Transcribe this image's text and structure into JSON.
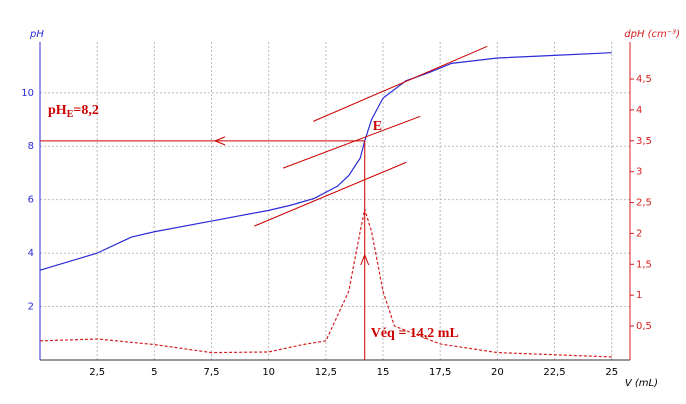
{
  "chart_data": {
    "type": "line",
    "y_label": "pH",
    "y2_label": "dpH  (cm⁻³)",
    "x_label": "V  (mL)",
    "xlim": [
      0,
      25.8
    ],
    "ylim": [
      0,
      11.9
    ],
    "y2lim": [
      -0.05,
      5.1
    ],
    "xticks": [
      {
        "value": 2.5,
        "label": "2,5"
      },
      5,
      {
        "value": 7.5,
        "label": "7,5"
      },
      10,
      {
        "value": 12.5,
        "label": "12,5"
      },
      15,
      {
        "value": 17.5,
        "label": "17,5"
      },
      20,
      {
        "value": 22.5,
        "label": "22,5"
      },
      25
    ],
    "yticks": [
      2,
      4,
      6,
      8,
      10
    ],
    "y2ticks": [
      {
        "value": 0.5,
        "label": "0,5"
      },
      1,
      {
        "value": 1.5,
        "label": "1,5"
      },
      2,
      {
        "value": 2.5,
        "label": "2,5"
      },
      3,
      {
        "value": 3.5,
        "label": "3,5"
      },
      4,
      {
        "value": 4.5,
        "label": "4,5"
      }
    ],
    "grid": true,
    "series": [
      {
        "name": "pH",
        "color": "#2b2bd9",
        "x": [
          0,
          2.5,
          4,
          5,
          7.5,
          10,
          11,
          12,
          13,
          13.5,
          14,
          14.2,
          14.5,
          15,
          16,
          17,
          18,
          20,
          22.5,
          25
        ],
        "values": [
          3.36,
          4.0,
          4.6,
          4.8,
          5.2,
          5.6,
          5.8,
          6.05,
          6.5,
          6.9,
          7.55,
          8.2,
          9.0,
          9.8,
          10.45,
          10.75,
          11.1,
          11.3,
          11.4,
          11.5
        ]
      },
      {
        "name": "dpH",
        "color": "#d62020",
        "axis": "y2",
        "dashed": true,
        "x": [
          0,
          2.5,
          5,
          7.5,
          10,
          11.5,
          12.5,
          13.5,
          14,
          14.2,
          14.5,
          15,
          15.5,
          17.5,
          20,
          25
        ],
        "values": [
          0.26,
          0.29,
          0.2,
          0.07,
          0.08,
          0.2,
          0.26,
          1.06,
          2.03,
          2.39,
          2.03,
          1.06,
          0.5,
          0.21,
          0.07,
          0.0
        ]
      }
    ],
    "tangents": [
      [
        [
          11.95,
          8.93
        ],
        [
          19.56,
          11.74
        ]
      ],
      [
        [
          10.63,
          7.18
        ],
        [
          16.63,
          9.12
        ]
      ],
      [
        [
          9.37,
          5.01
        ],
        [
          16.02,
          7.4
        ]
      ]
    ],
    "equivalence": {
      "x": 14.2,
      "y": 8.2
    },
    "annotations": {
      "point": "E",
      "volume": "Véq = 14,2 mL",
      "ph_parts": [
        "pH",
        "E",
        "=8,2"
      ]
    }
  }
}
